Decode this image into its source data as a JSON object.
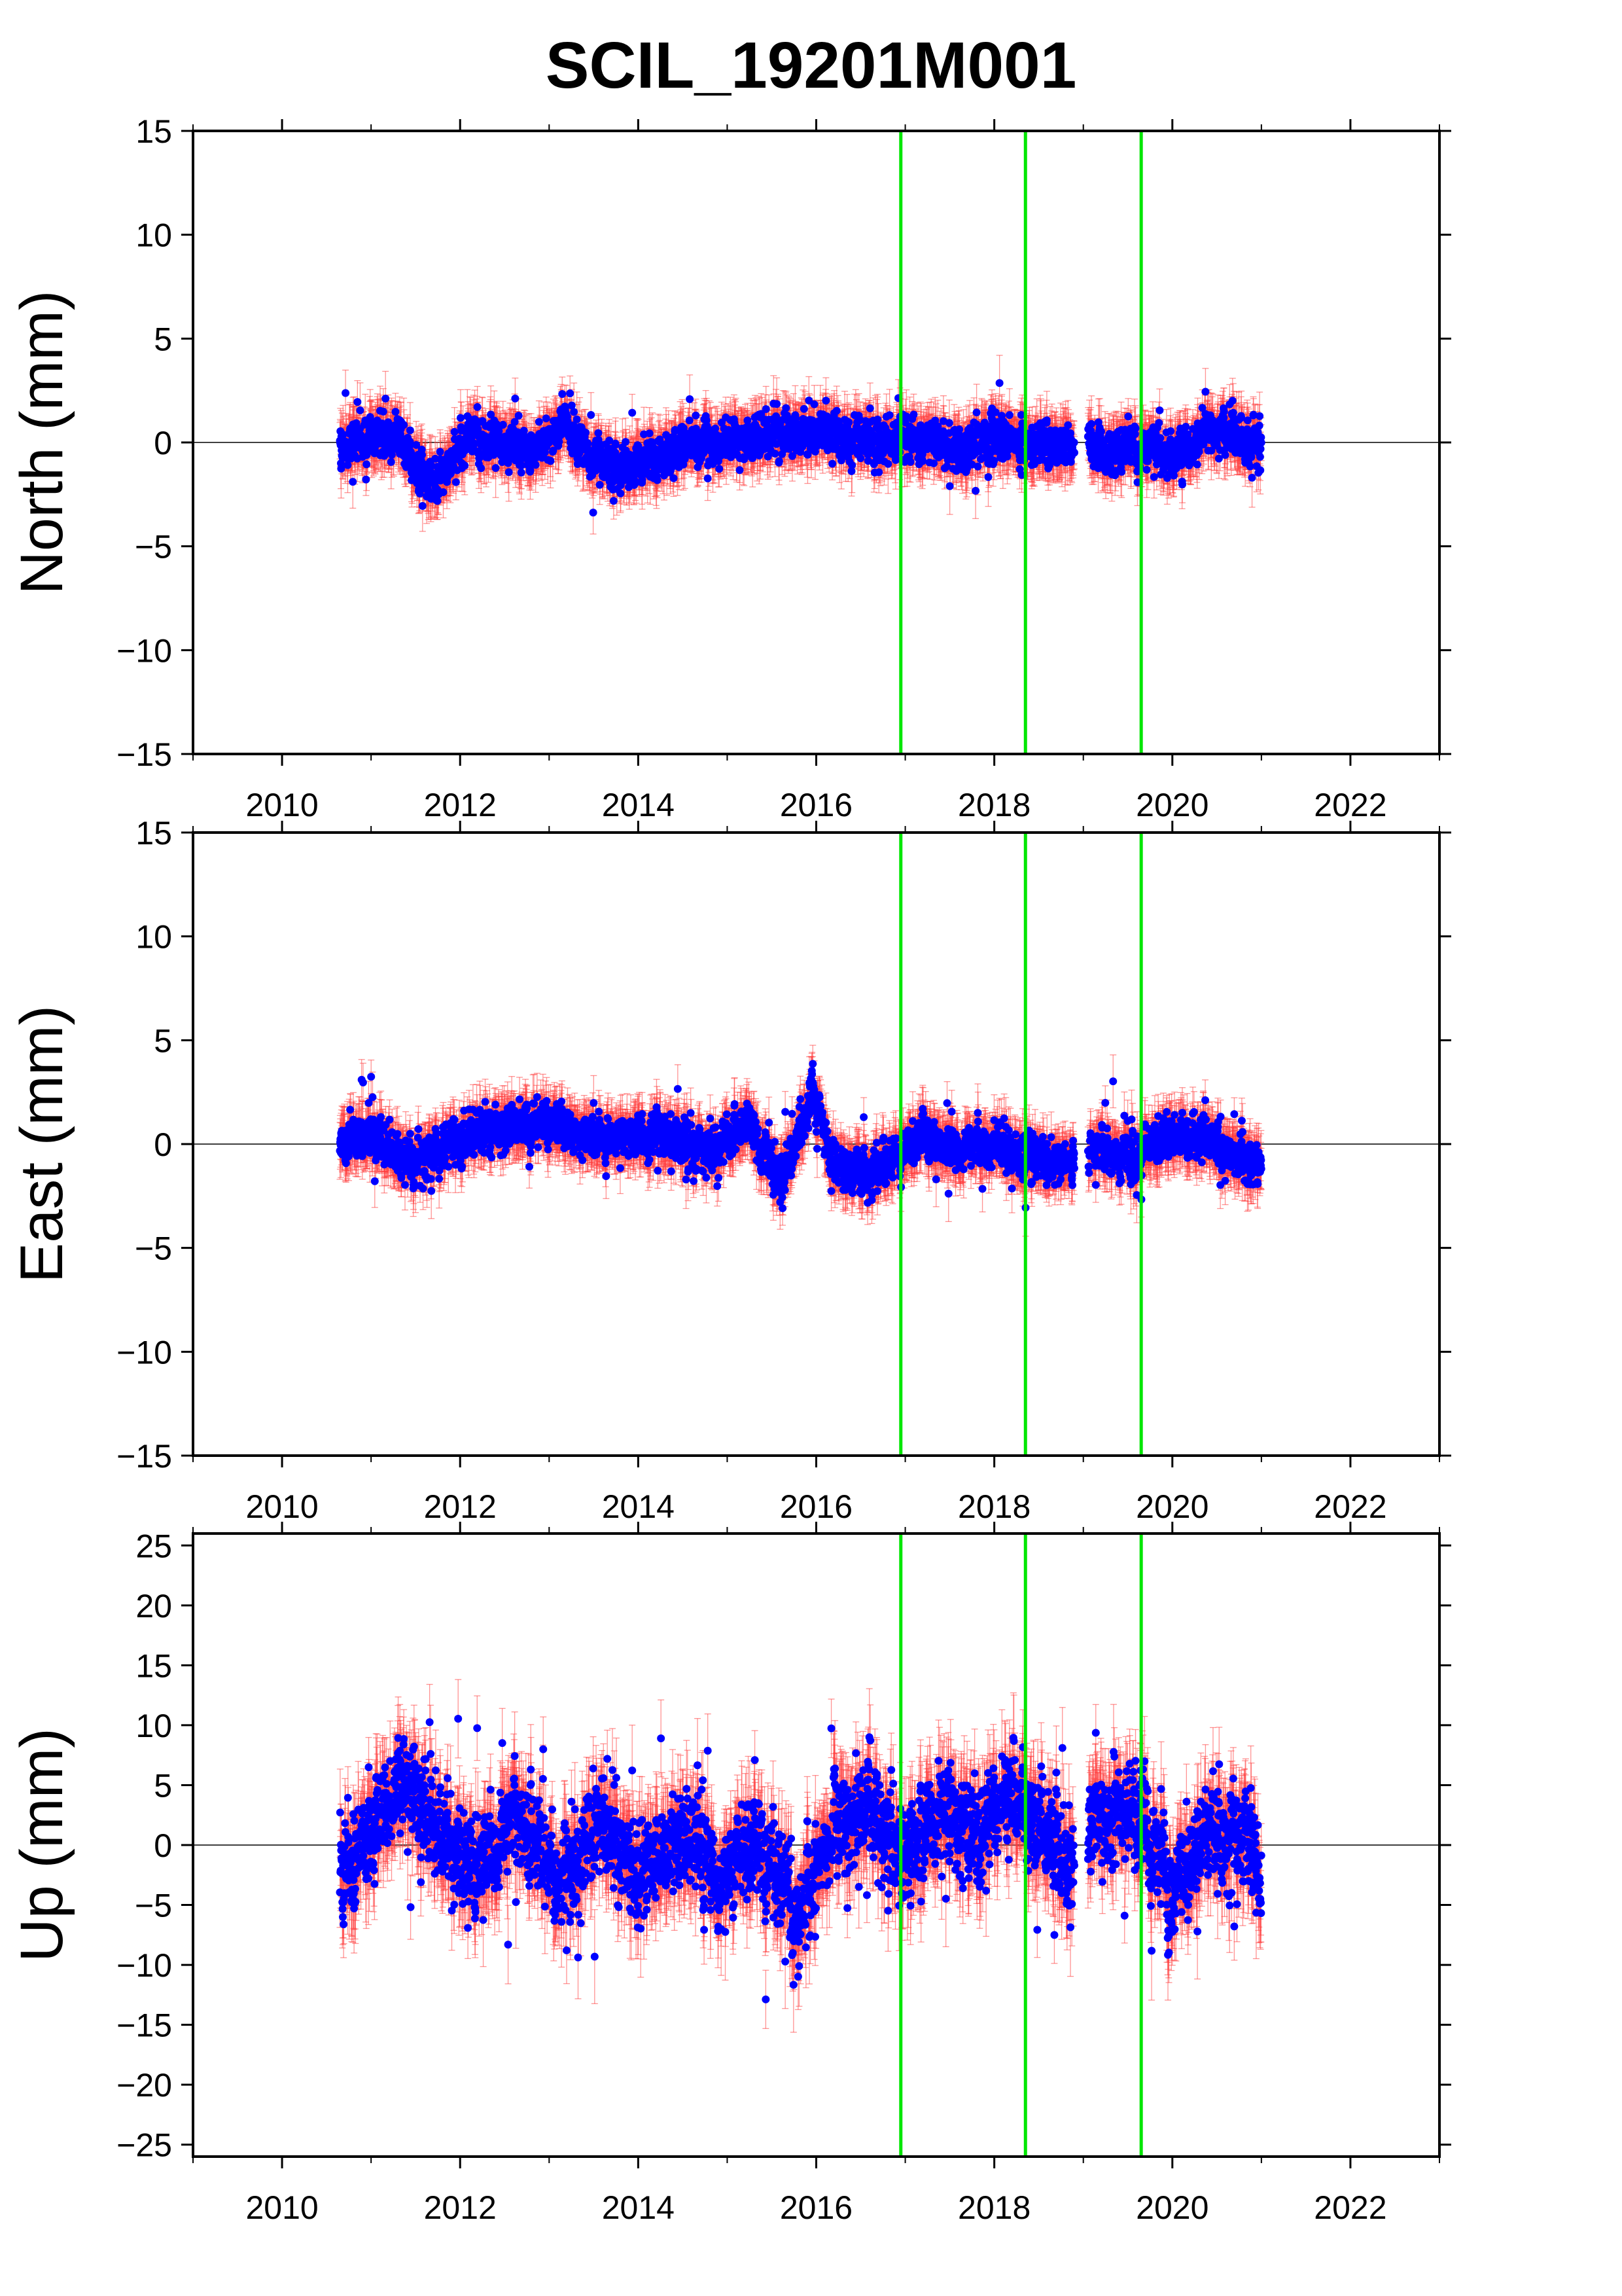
{
  "title": "SCIL_19201M001",
  "colors": {
    "points": "#0000ff",
    "error_bars": "#ff3b3b",
    "event_lines": "#00e600",
    "zero_line": "#000000",
    "frame": "#000000"
  },
  "chart_data": [
    {
      "type": "scatter",
      "name": "north",
      "ylabel": "North (mm)",
      "xlim": [
        2009,
        2023
      ],
      "ylim": [
        -15,
        15
      ],
      "xticks": [
        2010,
        2012,
        2014,
        2016,
        2018,
        2020,
        2022
      ],
      "xtick_labels": [
        "2010",
        "2012",
        "2014",
        "2016",
        "2018",
        "2020",
        "2022"
      ],
      "yticks": [
        -15,
        -10,
        -5,
        0,
        5,
        10,
        15
      ],
      "ytick_labels": [
        "−15",
        "−10",
        "−5",
        "0",
        "5",
        "10",
        "15"
      ],
      "event_lines": [
        2016.95,
        2018.35,
        2019.65
      ],
      "zero_line": 0,
      "data_span": [
        2010.65,
        2021.0
      ],
      "gaps": [
        [
          2018.9,
          2019.05
        ]
      ],
      "trend_profile": [
        [
          2010.65,
          -0.2
        ],
        [
          2011.0,
          0.4
        ],
        [
          2011.3,
          0.3
        ],
        [
          2011.6,
          -1.8
        ],
        [
          2011.8,
          -1.5
        ],
        [
          2012.1,
          0.5
        ],
        [
          2012.5,
          0.0
        ],
        [
          2012.8,
          -0.6
        ],
        [
          2013.2,
          0.9
        ],
        [
          2013.5,
          -1.0
        ],
        [
          2013.9,
          -1.2
        ],
        [
          2014.3,
          -0.4
        ],
        [
          2014.8,
          -0.1
        ],
        [
          2015.3,
          0.2
        ],
        [
          2015.8,
          0.4
        ],
        [
          2016.3,
          0.5
        ],
        [
          2016.8,
          0.1
        ],
        [
          2017.2,
          -0.1
        ],
        [
          2017.6,
          -0.4
        ],
        [
          2018.0,
          0.2
        ],
        [
          2018.5,
          -0.2
        ],
        [
          2018.9,
          0.0
        ],
        [
          2019.3,
          -0.4
        ],
        [
          2019.7,
          -0.3
        ],
        [
          2020.0,
          -0.8
        ],
        [
          2020.4,
          0.4
        ],
        [
          2020.7,
          0.6
        ],
        [
          2021.0,
          -0.3
        ]
      ],
      "noise_sd": 0.75,
      "error_bar_half": 1.1
    },
    {
      "type": "scatter",
      "name": "east",
      "ylabel": "East (mm)",
      "xlim": [
        2009,
        2023
      ],
      "ylim": [
        -15,
        15
      ],
      "xticks": [
        2010,
        2012,
        2014,
        2016,
        2018,
        2020,
        2022
      ],
      "xtick_labels": [
        "2010",
        "2012",
        "2014",
        "2016",
        "2018",
        "2020",
        "2022"
      ],
      "yticks": [
        -15,
        -10,
        -5,
        0,
        5,
        10,
        15
      ],
      "ytick_labels": [
        "−15",
        "−10",
        "−5",
        "0",
        "5",
        "10",
        "15"
      ],
      "event_lines": [
        2016.95,
        2018.35,
        2019.65
      ],
      "zero_line": 0,
      "data_span": [
        2010.65,
        2021.0
      ],
      "gaps": [
        [
          2018.9,
          2019.05
        ]
      ],
      "trend_profile": [
        [
          2010.65,
          0.2
        ],
        [
          2011.0,
          0.5
        ],
        [
          2011.4,
          -0.9
        ],
        [
          2011.7,
          -0.6
        ],
        [
          2012.2,
          0.6
        ],
        [
          2012.8,
          1.0
        ],
        [
          2013.3,
          0.5
        ],
        [
          2013.8,
          0.2
        ],
        [
          2014.3,
          0.4
        ],
        [
          2014.8,
          -0.4
        ],
        [
          2015.2,
          0.9
        ],
        [
          2015.6,
          -1.8
        ],
        [
          2015.95,
          2.4
        ],
        [
          2016.2,
          -0.8
        ],
        [
          2016.6,
          -1.5
        ],
        [
          2016.9,
          -0.5
        ],
        [
          2017.2,
          0.4
        ],
        [
          2017.6,
          -0.2
        ],
        [
          2018.0,
          0.0
        ],
        [
          2018.4,
          -0.6
        ],
        [
          2018.8,
          -0.8
        ],
        [
          2019.2,
          -0.3
        ],
        [
          2019.6,
          -0.7
        ],
        [
          2019.9,
          0.4
        ],
        [
          2020.3,
          0.2
        ],
        [
          2020.7,
          -0.6
        ],
        [
          2021.0,
          -1.2
        ]
      ],
      "noise_sd": 0.75,
      "error_bar_half": 1.1
    },
    {
      "type": "scatter",
      "name": "up",
      "ylabel": "Up (mm)",
      "xlim": [
        2009,
        2023
      ],
      "ylim": [
        -26,
        26
      ],
      "xticks": [
        2010,
        2012,
        2014,
        2016,
        2018,
        2020,
        2022
      ],
      "xtick_labels": [
        "2010",
        "2012",
        "2014",
        "2016",
        "2018",
        "2020",
        "2022"
      ],
      "yticks": [
        -25,
        -20,
        -15,
        -10,
        -5,
        0,
        5,
        10,
        15,
        20,
        25
      ],
      "ytick_labels": [
        "−25",
        "−20",
        "−15",
        "−10",
        "−5",
        "0",
        "5",
        "10",
        "15",
        "20",
        "25"
      ],
      "event_lines": [
        2016.95,
        2018.35,
        2019.65
      ],
      "zero_line": 0,
      "data_span": [
        2010.65,
        2021.0
      ],
      "gaps": [
        [
          2018.9,
          2019.05
        ]
      ],
      "trend_profile": [
        [
          2010.65,
          -3.0
        ],
        [
          2010.9,
          0.5
        ],
        [
          2011.4,
          5.5
        ],
        [
          2011.8,
          0.5
        ],
        [
          2012.2,
          -2.0
        ],
        [
          2012.6,
          2.0
        ],
        [
          2013.1,
          -3.0
        ],
        [
          2013.6,
          2.0
        ],
        [
          2014.0,
          -2.5
        ],
        [
          2014.5,
          1.0
        ],
        [
          2014.9,
          -3.0
        ],
        [
          2015.3,
          1.0
        ],
        [
          2015.8,
          -6.0
        ],
        [
          2016.2,
          1.5
        ],
        [
          2016.6,
          3.0
        ],
        [
          2016.95,
          -1.5
        ],
        [
          2017.4,
          3.0
        ],
        [
          2017.8,
          0.5
        ],
        [
          2018.3,
          4.0
        ],
        [
          2018.8,
          -1.5
        ],
        [
          2019.2,
          2.5
        ],
        [
          2019.6,
          3.0
        ],
        [
          2020.0,
          -4.0
        ],
        [
          2020.4,
          1.5
        ],
        [
          2020.8,
          1.0
        ],
        [
          2021.0,
          -2.5
        ]
      ],
      "noise_sd": 3.0,
      "error_bar_half": 3.2
    }
  ]
}
